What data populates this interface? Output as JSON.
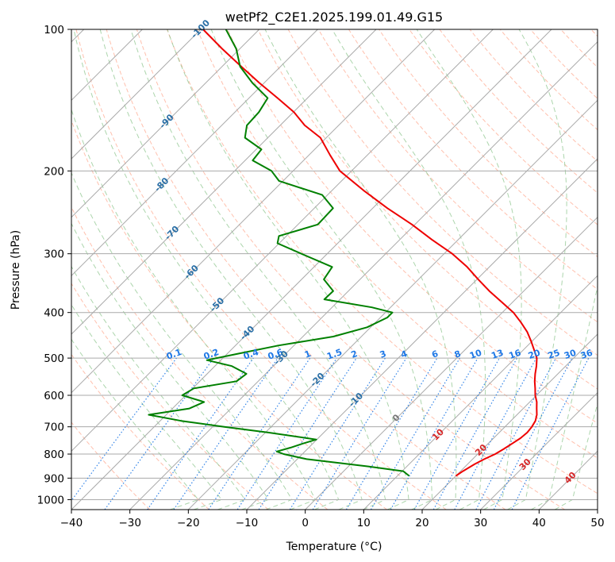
{
  "chart_data": {
    "type": "line",
    "chart_kind": "skew-T log-p diagram",
    "title": "wetPf2_C2E1.2025.199.01.49.G15",
    "xlabel": "Temperature (°C)",
    "ylabel": "Pressure (hPa)",
    "xlim": [
      -40,
      50
    ],
    "ylim": [
      1050,
      100
    ],
    "yscale": "log",
    "xticks": [
      -40,
      -30,
      -20,
      -10,
      0,
      10,
      20,
      30,
      40,
      50
    ],
    "yticks": [
      100,
      200,
      300,
      400,
      500,
      600,
      700,
      800,
      900,
      1000
    ],
    "grid": true,
    "colors": {
      "temperature": "#ee0000",
      "dewpoint": "#008000",
      "isotherm": "#aaaaaa",
      "dry_adiabat": "#ff8c69",
      "moist_adiabat": "#7fbf7f",
      "mixing_ratio": "#1e78e6",
      "pressure_grid": "#aaaaaa",
      "isotherm_label": "#2a6fa6",
      "theta_label": "#d62728"
    },
    "isotherm_labels": [
      "-100",
      "-90",
      "-80",
      "-70",
      "-60",
      "-50",
      "-40",
      "-30",
      "-20",
      "-10",
      "0",
      "10",
      "20",
      "30",
      "40"
    ],
    "mixing_ratio_labels": [
      "0.1",
      "0.2",
      "0.4",
      "0.6",
      "1",
      "1.5",
      "2",
      "3",
      "4",
      "6",
      "8",
      "10",
      "13",
      "16",
      "20",
      "25",
      "30",
      "36"
    ],
    "mixing_ratio_values": [
      0.1,
      0.2,
      0.4,
      0.6,
      1,
      1.5,
      2,
      3,
      4,
      6,
      8,
      10,
      13,
      16,
      20,
      25,
      30,
      36
    ],
    "series": [
      {
        "id": "temperature",
        "p": [
          890,
          870,
          840,
          820,
          800,
          780,
          760,
          740,
          720,
          700,
          680,
          660,
          640,
          620,
          600,
          580,
          560,
          540,
          520,
          500,
          480,
          460,
          440,
          420,
          400,
          380,
          360,
          340,
          320,
          300,
          280,
          260,
          240,
          220,
          200,
          185,
          170,
          160,
          150,
          140,
          130,
          120,
          110,
          100
        ],
        "t": [
          20.0,
          20.4,
          21.2,
          22.0,
          23.0,
          23.6,
          24.1,
          24.6,
          24.8,
          24.6,
          24.2,
          23.4,
          22.3,
          21.2,
          19.8,
          18.6,
          17.3,
          16.1,
          15.0,
          13.7,
          11.8,
          9.8,
          7.6,
          4.9,
          1.9,
          -1.9,
          -5.9,
          -9.8,
          -13.8,
          -18.6,
          -24.5,
          -30.5,
          -37.5,
          -44.6,
          -52.0,
          -56.4,
          -61.0,
          -65.8,
          -69.9,
          -75.1,
          -80.8,
          -86.7,
          -93.0,
          -99.6
        ]
      },
      {
        "id": "dewpoint",
        "p": [
          890,
          870,
          850,
          820,
          800,
          790,
          775,
          760,
          745,
          720,
          700,
          680,
          660,
          640,
          620,
          600,
          580,
          560,
          540,
          520,
          505,
          490,
          470,
          450,
          430,
          410,
          400,
          390,
          375,
          360,
          340,
          320,
          300,
          285,
          275,
          260,
          240,
          225,
          210,
          200,
          190,
          180,
          170,
          160,
          150,
          140,
          130,
          120,
          110,
          100
        ],
        "t": [
          12.0,
          10.2,
          3.4,
          -8.4,
          -13.2,
          -14.8,
          -13.1,
          -11.7,
          -10.1,
          -19.5,
          -28.0,
          -36.4,
          -43.0,
          -37.1,
          -35.7,
          -40.6,
          -39.8,
          -33.7,
          -33.3,
          -37.1,
          -42.4,
          -38.3,
          -32.6,
          -24.8,
          -20.6,
          -18.8,
          -18.8,
          -23.2,
          -32.7,
          -32.6,
          -36.2,
          -36.9,
          -44.4,
          -50.3,
          -51.3,
          -46.6,
          -46.8,
          -50.9,
          -60.7,
          -63.7,
          -68.7,
          -69.1,
          -73.9,
          -75.7,
          -75.9,
          -76.8,
          -82.0,
          -86.9,
          -90.6,
          -95.7
        ]
      }
    ]
  }
}
